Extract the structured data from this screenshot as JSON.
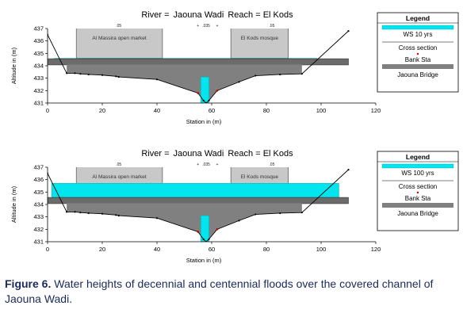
{
  "chart_data": [
    {
      "type": "area",
      "title_parts": [
        "River =",
        "Jaouna Wadi",
        "Reach = El Kods"
      ],
      "xlabel": "Station in (m)",
      "ylabel": "Altitude in (m)",
      "xlim": [
        0,
        120
      ],
      "ylim": [
        431,
        437
      ],
      "xticks": [
        0,
        20,
        40,
        60,
        80,
        100,
        120
      ],
      "yticks": [
        431,
        432,
        433,
        434,
        435,
        436,
        437
      ],
      "ground_profile": {
        "x": [
          0,
          7,
          10,
          12,
          15,
          20,
          25,
          26,
          40,
          55,
          57,
          58,
          59,
          62,
          70,
          76,
          85,
          93,
          110
        ],
        "y": [
          436.5,
          433.4,
          433.4,
          433.35,
          433.3,
          433.25,
          433.15,
          433.1,
          432.9,
          431.8,
          431.2,
          431.0,
          431.2,
          432.0,
          432.7,
          433.2,
          433.3,
          433.35,
          436.8
        ]
      },
      "water_surface": {
        "elevation": 434.6,
        "x_from": 2.5,
        "x_to": 98.5
      },
      "bridge_deck": {
        "x_from": 0,
        "x_to": 110,
        "low_chord": 434.1,
        "high_chord": 434.6
      },
      "culvert": {
        "x_from": 56,
        "x_to": 59,
        "bottom": 431,
        "top": 433.1
      },
      "buildings": [
        {
          "label": "Al Massira open market",
          "x_from": 10.5,
          "x_to": 42,
          "bottom": 434.6,
          "top": 437
        },
        {
          "label": "El Kods mosque",
          "x_from": 67,
          "x_to": 88,
          "bottom": 434.6,
          "top": 437
        }
      ],
      "top_marks": [
        {
          "x": 26,
          "label": ".05"
        },
        {
          "x": 55,
          "label": "+"
        },
        {
          "x": 58,
          "label": ".035"
        },
        {
          "x": 62,
          "label": "+"
        },
        {
          "x": 82,
          "label": ".05"
        }
      ],
      "legend": {
        "title": "Legend",
        "entries": [
          {
            "kind": "ws",
            "label": "WS 10 yrs",
            "color": "#00e5ee"
          },
          {
            "kind": "text",
            "label": "Cross section"
          },
          {
            "kind": "dot",
            "label": "Bank Sta",
            "color": "#cc0000"
          },
          {
            "kind": "bar",
            "label": "Jaouna Bridge",
            "color": "#808080"
          }
        ]
      }
    },
    {
      "type": "area",
      "title_parts": [
        "River =",
        "Jaouna Wadi",
        "Reach = El Kods"
      ],
      "xlabel": "Station in (m)",
      "ylabel": "Altitude in (m)",
      "xlim": [
        0,
        120
      ],
      "ylim": [
        431,
        437
      ],
      "xticks": [
        0,
        20,
        40,
        60,
        80,
        100,
        120
      ],
      "yticks": [
        431,
        432,
        433,
        434,
        435,
        436,
        437
      ],
      "ground_profile": {
        "x": [
          0,
          7,
          10,
          12,
          15,
          20,
          25,
          26,
          40,
          55,
          57,
          58,
          59,
          62,
          70,
          76,
          85,
          93,
          110
        ],
        "y": [
          436.5,
          433.4,
          433.4,
          433.35,
          433.3,
          433.25,
          433.15,
          433.1,
          432.9,
          431.8,
          431.2,
          431.0,
          431.2,
          432.0,
          432.7,
          433.2,
          433.3,
          433.35,
          436.8
        ]
      },
      "water_surface": {
        "elevation": 435.7,
        "x_from": 1.5,
        "x_to": 106.5
      },
      "bridge_deck": {
        "x_from": 0,
        "x_to": 110,
        "low_chord": 434.1,
        "high_chord": 434.6
      },
      "culvert": {
        "x_from": 56,
        "x_to": 59,
        "bottom": 431,
        "top": 433.1
      },
      "buildings": [
        {
          "label": "Al Massira open market",
          "x_from": 10.5,
          "x_to": 42,
          "bottom": 434.6,
          "top": 437
        },
        {
          "label": "El Kods mosque",
          "x_from": 67,
          "x_to": 88,
          "bottom": 434.6,
          "top": 437
        }
      ],
      "top_marks": [
        {
          "x": 26,
          "label": ".05"
        },
        {
          "x": 55,
          "label": "+"
        },
        {
          "x": 58,
          "label": ".035"
        },
        {
          "x": 62,
          "label": "+"
        },
        {
          "x": 82,
          "label": ".05"
        }
      ],
      "legend": {
        "title": "Legend",
        "entries": [
          {
            "kind": "ws",
            "label": "WS 100 yrs",
            "color": "#00e5ee"
          },
          {
            "kind": "text",
            "label": "Cross section"
          },
          {
            "kind": "dot",
            "label": "Bank Sta",
            "color": "#cc0000"
          },
          {
            "kind": "bar",
            "label": "Jaouna Bridge",
            "color": "#808080"
          }
        ]
      }
    }
  ],
  "colors": {
    "water": "#00e5ee",
    "ground": "#808080",
    "bridge": "#6b6b6b",
    "building": "#c8c8c8",
    "axis": "#000000",
    "bank_point": "#cc0000"
  },
  "caption": {
    "label": "Figure 6.",
    "text": "Water heights of decennial and centennial floods over the covered channel of Jaouna Wadi."
  }
}
